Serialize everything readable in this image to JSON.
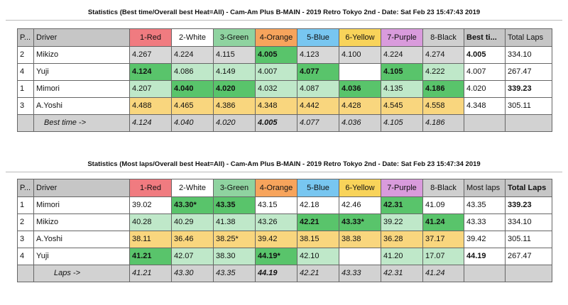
{
  "t1": {
    "title": "Statistics (Best time/Overall best Heat=All) - Cam-Am Plus B-MAIN - 2019 Retro Tokyo 2nd - Date: Sat Feb 23 15:47:43 2019",
    "header": [
      "P...",
      "Driver",
      "1-Red",
      "2-White",
      "3-Green",
      "4-Orange",
      "5-Blue",
      "6-Yellow",
      "7-Purple",
      "8-Black",
      "Best ti...",
      "Total Laps"
    ],
    "rows": [
      [
        "2",
        "Mikizo",
        "4.267",
        "4.224",
        "4.115",
        "4.005",
        "4.123",
        "4.100",
        "4.224",
        "4.274",
        "4.005",
        "334.10"
      ],
      [
        "4",
        "Yuji",
        "4.124",
        "4.086",
        "4.149",
        "4.007",
        "4.077",
        "",
        "4.105",
        "4.222",
        "4.007",
        "267.47"
      ],
      [
        "1",
        "Mimori",
        "4.207",
        "4.040",
        "4.020",
        "4.032",
        "4.087",
        "4.036",
        "4.135",
        "4.186",
        "4.020",
        "339.23"
      ],
      [
        "3",
        "A.Yoshi",
        "4.488",
        "4.465",
        "4.386",
        "4.348",
        "4.442",
        "4.428",
        "4.545",
        "4.558",
        "4.348",
        "305.11"
      ]
    ],
    "footer": [
      "",
      "Best time ->",
      "4.124",
      "4.040",
      "4.020",
      "4.005",
      "4.077",
      "4.036",
      "4.105",
      "4.186",
      "",
      ""
    ]
  },
  "t2": {
    "title": "Statistics (Most laps/Overall best Heat=All) - Cam-Am Plus B-MAIN - 2019 Retro Tokyo 2nd - Date: Sat Feb 23 15:47:34 2019",
    "header": [
      "P...",
      "Driver",
      "1-Red",
      "2-White",
      "3-Green",
      "4-Orange",
      "5-Blue",
      "6-Yellow",
      "7-Purple",
      "8-Black",
      "Most laps",
      "Total Laps"
    ],
    "rows": [
      [
        "1",
        "Mimori",
        "39.02",
        "43.30*",
        "43.35",
        "43.15",
        "42.18",
        "42.46",
        "42.31",
        "41.09",
        "43.35",
        "339.23"
      ],
      [
        "2",
        "Mikizo",
        "40.28",
        "40.29",
        "41.38",
        "43.26",
        "42.21",
        "43.33*",
        "39.22",
        "41.24",
        "43.33",
        "334.10"
      ],
      [
        "3",
        "A.Yoshi",
        "38.11",
        "36.46",
        "38.25*",
        "39.42",
        "38.15",
        "38.38",
        "36.28",
        "37.17",
        "39.42",
        "305.11"
      ],
      [
        "4",
        "Yuji",
        "41.21",
        "42.07",
        "38.30",
        "44.19*",
        "42.10",
        "",
        "41.20",
        "17.07",
        "44.19",
        "267.47"
      ]
    ],
    "footer": [
      "",
      "Laps ->",
      "41.21",
      "43.30",
      "43.35",
      "44.19",
      "42.21",
      "43.33",
      "42.31",
      "41.24",
      "",
      ""
    ]
  }
}
